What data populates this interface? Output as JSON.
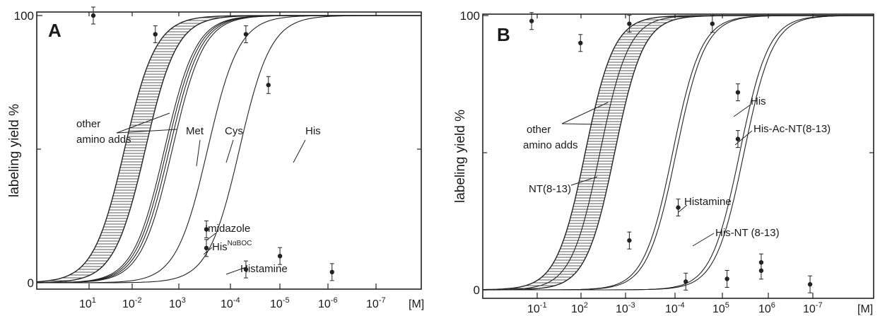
{
  "chart_data": [
    {
      "type": "line",
      "panel_label": "A",
      "ylabel": "labeling yield %",
      "x_unit_label": "[M]",
      "x_scale": "log, reversed (concentration decreases to the right)",
      "xlim": [
        0.1,
        1e-07
      ],
      "ylim": [
        0,
        100
      ],
      "yticks": [
        "100",
        "0"
      ],
      "xticks": [
        {
          "base": "10",
          "exp": "1",
          "value": 0.1
        },
        {
          "base": "10",
          "exp": "-2",
          "value": 0.01
        },
        {
          "base": "10",
          "exp": "3",
          "value": 0.001
        },
        {
          "base": "10",
          "exp": "-4",
          "value": 0.0001
        },
        {
          "base": "10",
          "exp": "-5",
          "value": 1e-05
        },
        {
          "base": "10",
          "exp": "-6",
          "value": 1e-06
        },
        {
          "base": "10",
          "exp": "-7",
          "value": 1e-07
        }
      ],
      "band": {
        "name": "other amino acids",
        "label": "other\namino adds",
        "ic50_range": [
          0.0028,
          0.0012
        ]
      },
      "series": [
        {
          "name": "Histamine",
          "label": "Histamine",
          "ic50": 0.00055
        },
        {
          "name": "His NαBOC",
          "label": "His",
          "label_sup": "NαBOC",
          "ic50": 0.0005
        },
        {
          "name": "Imidazole",
          "label": "Imidazole",
          "ic50": 0.00045
        },
        {
          "name": "Met",
          "label": "Met",
          "ic50": 0.0004
        },
        {
          "name": "Cys",
          "label": "Cys",
          "ic50": 9.5e-05
        },
        {
          "name": "His",
          "label": "His",
          "ic50": 2.6e-05
        }
      ],
      "points": [
        {
          "x": 0.01,
          "y": 100
        },
        {
          "x": 0.0008,
          "y": 93
        },
        {
          "x": 0.0001,
          "y": 20
        },
        {
          "x": 0.0001,
          "y": 13
        },
        {
          "x": 2e-05,
          "y": 5
        },
        {
          "x": 2e-05,
          "y": 93
        },
        {
          "x": 8e-06,
          "y": 74
        },
        {
          "x": 5e-06,
          "y": 10
        },
        {
          "x": 6e-07,
          "y": 4
        }
      ]
    },
    {
      "type": "line",
      "panel_label": "B",
      "ylabel": "labeling yield %",
      "x_unit_label": "[M]",
      "x_scale": "log, reversed (concentration decreases to the right)",
      "xlim": [
        1,
        1e-08
      ],
      "ylim": [
        0,
        100
      ],
      "yticks": [
        "100",
        "0"
      ],
      "xticks": [
        {
          "base": "10",
          "exp": "-1",
          "value": 0.1
        },
        {
          "base": "10",
          "exp": "2",
          "value": 0.01
        },
        {
          "base": "10",
          "exp": "-3",
          "value": 0.001
        },
        {
          "base": "10",
          "exp": "-4",
          "value": 0.0001
        },
        {
          "base": "10",
          "exp": "5",
          "value": 1e-05
        },
        {
          "base": "10",
          "exp": "6",
          "value": 1e-06
        },
        {
          "base": "10",
          "exp": "-7",
          "value": 1e-07
        }
      ],
      "band": {
        "name": "other amino acids",
        "label": "other\namino adds",
        "ic50_range": [
          0.008,
          0.002
        ]
      },
      "series": [
        {
          "name": "NT(8-13)",
          "label": "NT(8-13)",
          "ic50": 0.004
        },
        {
          "name": "Histamine",
          "label": "Histamine",
          "ic50": 0.00013
        },
        {
          "name": "His-NT (8-13)",
          "label": "His-NT (8-13)",
          "ic50": 0.00011
        },
        {
          "name": "His-Ac-NT(8-13)",
          "label": "His-Ac-NT(8-13)",
          "ic50": 5.5e-06
        },
        {
          "name": "His",
          "label": "His",
          "ic50": 4.5e-06
        }
      ],
      "points": [
        {
          "x": 0.1,
          "y": 98
        },
        {
          "x": 0.01,
          "y": 90
        },
        {
          "x": 0.001,
          "y": 97
        },
        {
          "x": 0.001,
          "y": 18
        },
        {
          "x": 0.0001,
          "y": 30
        },
        {
          "x": 7e-05,
          "y": 3
        },
        {
          "x": 2e-05,
          "y": 97
        },
        {
          "x": 6e-06,
          "y": 72
        },
        {
          "x": 6e-06,
          "y": 55
        },
        {
          "x": 1e-05,
          "y": 4
        },
        {
          "x": 2e-06,
          "y": 10
        },
        {
          "x": 2e-06,
          "y": 7
        },
        {
          "x": 2e-07,
          "y": 2
        }
      ]
    }
  ]
}
